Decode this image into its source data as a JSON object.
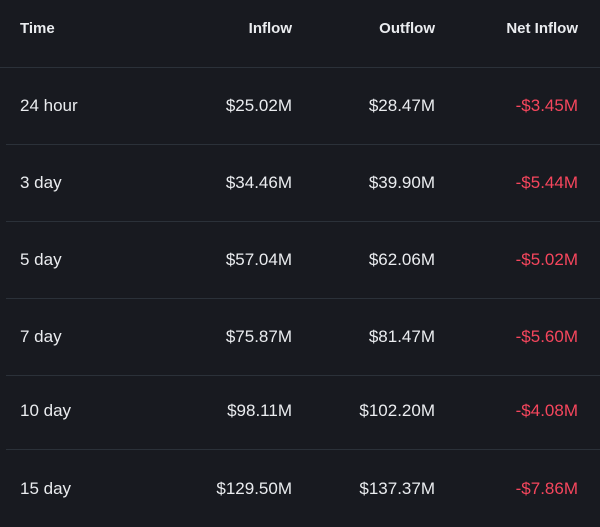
{
  "columns": {
    "time": "Time",
    "inflow": "Inflow",
    "outflow": "Outflow",
    "net_inflow": "Net Inflow"
  },
  "rows": [
    {
      "time": "24 hour",
      "inflow": "$25.02M",
      "outflow": "$28.47M",
      "net_inflow": "-$3.45M"
    },
    {
      "time": "3 day",
      "inflow": "$34.46M",
      "outflow": "$39.90M",
      "net_inflow": "-$5.44M"
    },
    {
      "time": "5 day",
      "inflow": "$57.04M",
      "outflow": "$62.06M",
      "net_inflow": "-$5.02M"
    },
    {
      "time": "7 day",
      "inflow": "$75.87M",
      "outflow": "$81.47M",
      "net_inflow": "-$5.60M"
    },
    {
      "time": "10 day",
      "inflow": "$98.11M",
      "outflow": "$102.20M",
      "net_inflow": "-$4.08M"
    },
    {
      "time": "15 day",
      "inflow": "$129.50M",
      "outflow": "$137.37M",
      "net_inflow": "-$7.86M"
    }
  ],
  "colors": {
    "background": "#181a20",
    "text": "#eaecef",
    "negative": "#f6465d",
    "divider": "#2b3139"
  }
}
